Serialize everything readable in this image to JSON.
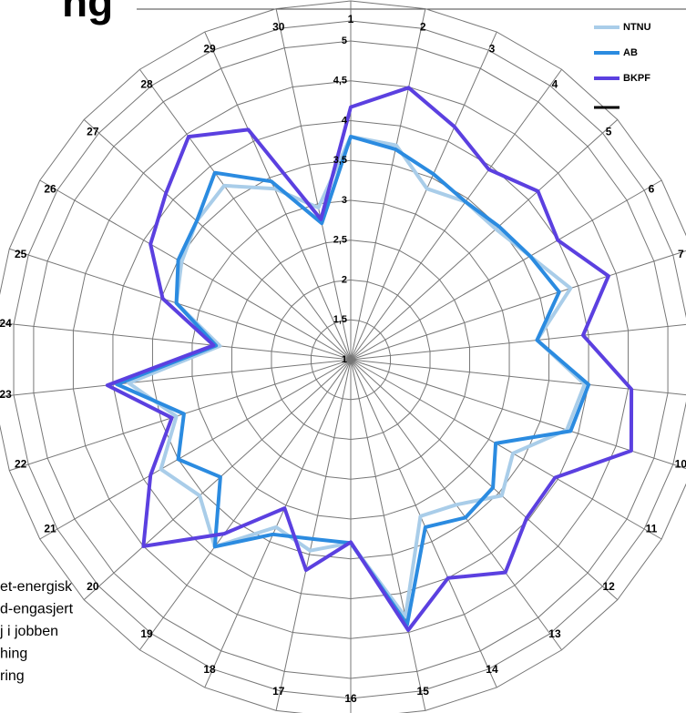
{
  "chart_data": {
    "type": "radar",
    "title": "ng",
    "notes": [
      "et-energisk",
      "d-engasjert",
      "j i jobben",
      "hing",
      "ring"
    ],
    "categories": [
      "1",
      "2",
      "3",
      "4",
      "5",
      "6",
      "7",
      "8",
      "9",
      "10",
      "11",
      "12",
      "13",
      "14",
      "15",
      "16",
      "17",
      "18",
      "19",
      "20",
      "21",
      "22",
      "23",
      "24",
      "25",
      "26",
      "27",
      "28",
      "29",
      "30"
    ],
    "ylim": [
      1,
      5
    ],
    "yticks": [
      1,
      {
        "value": 1.5,
        "label": "1,5"
      },
      2,
      {
        "value": 2.5,
        "label": "2,5"
      },
      3,
      {
        "value": 3.5,
        "label": "3,5"
      },
      4,
      {
        "value": 4.5,
        "label": "4,5"
      },
      5
    ],
    "grid": true,
    "series": [
      {
        "name": "NTNU",
        "color": "#a9cde9",
        "values": [
          3.8,
          3.75,
          3.35,
          3.45,
          3.45,
          3.6,
          3.9,
          3.35,
          3.95,
          3.85,
          3.35,
          3.55,
          3.25,
          3.15,
          4.3,
          3.3,
          3.45,
          3.3,
          3.9,
          3.55,
          3.75,
          3.3,
          3.8,
          2.65,
          3.3,
          3.45,
          3.6,
          3.7,
          3.35,
          2.95
        ]
      },
      {
        "name": "AB",
        "color": "#2b8be0",
        "values": [
          3.8,
          3.7,
          3.55,
          3.45,
          3.5,
          3.6,
          3.75,
          3.35,
          4.0,
          3.9,
          3.1,
          3.4,
          3.45,
          3.3,
          4.4,
          3.3,
          3.3,
          3.4,
          3.9,
          3.2,
          3.5,
          3.2,
          3.95,
          2.7,
          3.3,
          3.5,
          3.6,
          3.9,
          3.45,
          2.75
        ]
      },
      {
        "name": "BKPF",
        "color": "#5b40e0",
        "values": [
          4.17,
          4.49,
          4.2,
          3.95,
          4.16,
          4.0,
          4.4,
          3.93,
          4.54,
          4.7,
          3.96,
          3.97,
          4.3,
          4.0,
          4.47,
          3.29,
          3.7,
          3.04,
          3.7,
          4.5,
          3.9,
          3.36,
          4.07,
          2.73,
          3.48,
          3.9,
          4.12,
          4.46,
          4.16,
          2.8
        ]
      }
    ]
  }
}
